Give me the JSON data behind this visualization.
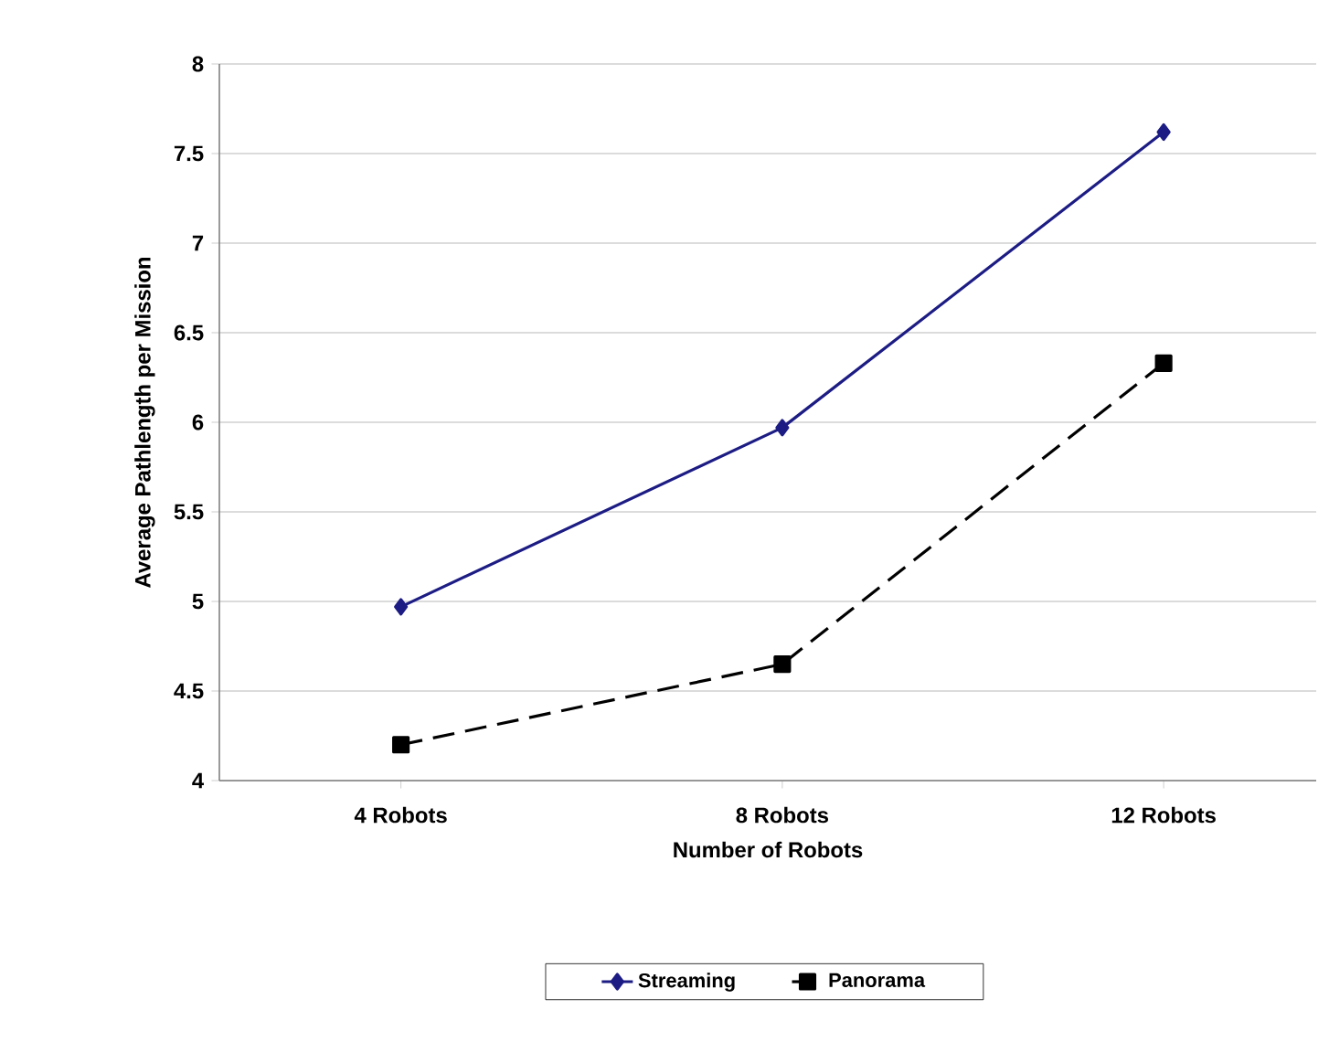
{
  "chart_data": {
    "type": "line",
    "xlabel": "Number of Robots",
    "ylabel": "Average Pathlength per Mission",
    "categories": [
      "4 Robots",
      "8 Robots",
      "12 Robots"
    ],
    "series": [
      {
        "name": "Streaming",
        "color": "#1c1c84",
        "values": [
          4.97,
          5.97,
          7.62
        ],
        "marker": "diamond",
        "line_style": "solid"
      },
      {
        "name": "Panorama",
        "color": "#000000",
        "values": [
          4.2,
          4.65,
          6.33
        ],
        "marker": "square",
        "line_style": "dashed"
      }
    ],
    "ylim": [
      4,
      8
    ],
    "yticks": [
      4,
      4.5,
      5,
      5.5,
      6,
      6.5,
      7,
      7.5,
      8
    ],
    "grid": "y",
    "legend": "bottom"
  }
}
